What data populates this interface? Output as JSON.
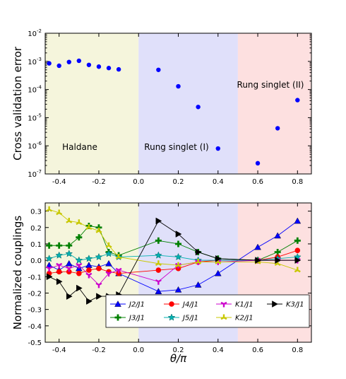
{
  "chart_data": [
    {
      "type": "scatter",
      "ylabel": "Cross validation error",
      "yscale": "log",
      "ylim_exp": [
        -7,
        -2
      ],
      "yticks": [
        "10^-7",
        "10^-6",
        "10^-5",
        "10^-4",
        "10^-3",
        "10^-2"
      ],
      "xlim": [
        -0.47,
        0.87
      ],
      "xticks": [
        "-0.4",
        "-0.2",
        "0.0",
        "0.2",
        "0.4",
        "0.6",
        "0.8"
      ],
      "marker_color": "#0000ff",
      "regions": [
        {
          "label": "Haldane",
          "from": -0.47,
          "to": 0.0,
          "color": "#f5f5dc"
        },
        {
          "label": "Rung singlet (I)",
          "from": 0.0,
          "to": 0.5,
          "color": "#e0e0fa"
        },
        {
          "label": "Rung singlet (II)",
          "from": 0.5,
          "to": 0.87,
          "color": "#fde0e0"
        }
      ],
      "points": [
        {
          "x": -0.45,
          "y": 0.00085
        },
        {
          "x": -0.4,
          "y": 0.0007
        },
        {
          "x": -0.35,
          "y": 0.00095
        },
        {
          "x": -0.3,
          "y": 0.00105
        },
        {
          "x": -0.25,
          "y": 0.00075
        },
        {
          "x": -0.2,
          "y": 0.00065
        },
        {
          "x": -0.15,
          "y": 0.00058
        },
        {
          "x": -0.1,
          "y": 0.00052
        },
        {
          "x": 0.1,
          "y": 0.0005
        },
        {
          "x": 0.2,
          "y": 0.00013
        },
        {
          "x": 0.3,
          "y": 2.4e-05
        },
        {
          "x": 0.4,
          "y": 8e-07
        },
        {
          "x": 0.6,
          "y": 2.4e-07
        },
        {
          "x": 0.7,
          "y": 4.2e-06
        },
        {
          "x": 0.8,
          "y": 4.2e-05
        }
      ]
    },
    {
      "type": "line",
      "xlabel": "θ/π",
      "ylabel": "Normalized couplings",
      "xlim": [
        -0.47,
        0.87
      ],
      "ylim": [
        -0.5,
        0.35
      ],
      "xticks": [
        "-0.4",
        "-0.2",
        "0.0",
        "0.2",
        "0.4",
        "0.6",
        "0.8"
      ],
      "yticks": [
        "-0.5",
        "-0.4",
        "-0.3",
        "-0.2",
        "-0.1",
        "0.0",
        "0.1",
        "0.2",
        "0.3"
      ],
      "legend_position": "lower-right",
      "x": [
        -0.45,
        -0.4,
        -0.35,
        -0.3,
        -0.25,
        -0.2,
        -0.15,
        -0.1,
        0.1,
        0.2,
        0.3,
        0.4,
        0.6,
        0.7,
        0.8
      ],
      "series": [
        {
          "name": "J2/J1",
          "color": "#0000ff",
          "marker": "triangle-up",
          "values": [
            -0.03,
            -0.06,
            -0.02,
            -0.05,
            -0.03,
            -0.04,
            -0.02,
            -0.08,
            -0.19,
            -0.18,
            -0.15,
            -0.08,
            0.08,
            0.15,
            0.24
          ]
        },
        {
          "name": "J3/J1",
          "color": "#008000",
          "marker": "plus",
          "values": [
            0.09,
            0.09,
            0.09,
            0.14,
            0.21,
            0.2,
            0.05,
            0.03,
            0.12,
            0.1,
            0.05,
            0.01,
            0.0,
            0.05,
            0.12
          ]
        },
        {
          "name": "J4/J1",
          "color": "#ff0000",
          "marker": "circle",
          "values": [
            -0.08,
            -0.07,
            -0.07,
            -0.08,
            -0.06,
            -0.05,
            -0.07,
            -0.08,
            -0.06,
            -0.05,
            -0.01,
            0.0,
            0.0,
            0.02,
            0.06
          ]
        },
        {
          "name": "J5/J1",
          "color": "#00b0b0",
          "marker": "star",
          "values": [
            0.01,
            0.03,
            0.04,
            0.0,
            0.01,
            0.02,
            0.04,
            0.02,
            0.03,
            0.02,
            0.0,
            0.0,
            0.0,
            0.01,
            0.02
          ]
        },
        {
          "name": "K1/J1",
          "color": "#cc00cc",
          "marker": "tri-down",
          "values": [
            -0.05,
            -0.03,
            -0.05,
            -0.03,
            -0.09,
            -0.15,
            -0.08,
            -0.06,
            -0.13,
            -0.03,
            -0.01,
            -0.01,
            0.0,
            0.0,
            0.0
          ]
        },
        {
          "name": "K2/J1",
          "color": "#c8c800",
          "marker": "tri-up",
          "values": [
            0.31,
            0.29,
            0.24,
            0.23,
            0.2,
            0.18,
            0.09,
            0.02,
            -0.02,
            -0.03,
            -0.01,
            -0.01,
            -0.01,
            -0.02,
            -0.06
          ]
        },
        {
          "name": "K3/J1",
          "color": "#000000",
          "marker": "triangle-right",
          "values": [
            -0.1,
            -0.13,
            -0.22,
            -0.17,
            -0.25,
            -0.22,
            -0.22,
            -0.21,
            0.24,
            0.16,
            0.05,
            0.01,
            0.0,
            0.0,
            0.0
          ]
        }
      ],
      "regions": [
        {
          "from": -0.47,
          "to": 0.0,
          "color": "#f5f5dc"
        },
        {
          "from": 0.0,
          "to": 0.5,
          "color": "#e0e0fa"
        },
        {
          "from": 0.5,
          "to": 0.87,
          "color": "#fde0e0"
        }
      ]
    }
  ]
}
